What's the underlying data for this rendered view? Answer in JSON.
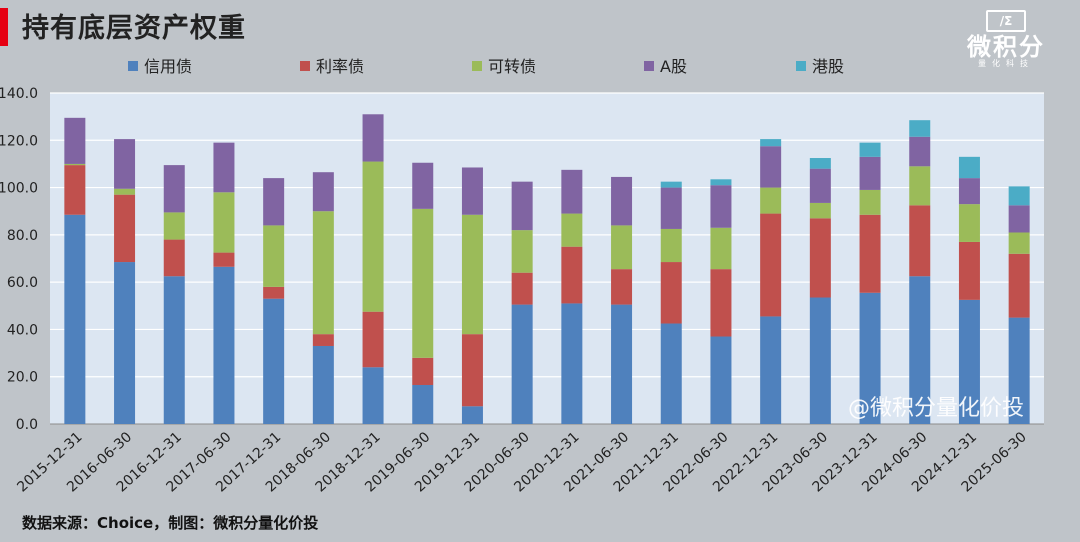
{
  "title": "持有底层资产权重",
  "logo": {
    "mark": "/Σ",
    "name": "微积分",
    "sub": "量化科技"
  },
  "source": "数据来源：Choice，制图：微积分量化价投",
  "watermark": "@微积分量化价投",
  "colors": {
    "信用债": "#4f81bd",
    "利率债": "#c0504d",
    "可转债": "#9bbb59",
    "A股": "#8064a2",
    "港股": "#4bacc6",
    "plot_bg": "#dce6f2",
    "grid": "#ffffff"
  },
  "chart_data": {
    "type": "bar",
    "stacked": true,
    "categories": [
      "2015-12-31",
      "2016-06-30",
      "2016-12-31",
      "2017-06-30",
      "2017-12-31",
      "2018-06-30",
      "2018-12-31",
      "2019-06-30",
      "2019-12-31",
      "2020-06-30",
      "2020-12-31",
      "2021-06-30",
      "2021-12-31",
      "2022-06-30",
      "2022-12-31",
      "2023-06-30",
      "2023-12-31",
      "2024-06-30",
      "2024-12-31",
      "2025-06-30"
    ],
    "series": [
      {
        "name": "信用债",
        "values": [
          88.5,
          68.5,
          62.5,
          66.5,
          53.0,
          33.0,
          24.0,
          16.5,
          7.5,
          50.5,
          51.0,
          50.5,
          42.5,
          37.0,
          45.5,
          53.5,
          55.5,
          62.5,
          52.5,
          45.0
        ]
      },
      {
        "name": "利率债",
        "values": [
          21.0,
          28.5,
          15.5,
          6.0,
          5.0,
          5.0,
          23.5,
          11.5,
          30.5,
          13.5,
          24.0,
          15.0,
          26.0,
          28.5,
          43.5,
          33.5,
          33.0,
          30.0,
          24.5,
          27.0
        ]
      },
      {
        "name": "可转债",
        "values": [
          0.5,
          2.5,
          11.5,
          25.5,
          26.0,
          52.0,
          63.5,
          63.0,
          50.5,
          18.0,
          14.0,
          18.5,
          14.0,
          17.5,
          11.0,
          6.5,
          10.5,
          16.5,
          16.0,
          9.0
        ]
      },
      {
        "name": "A股",
        "values": [
          19.5,
          21.0,
          20.0,
          21.0,
          20.0,
          16.5,
          20.0,
          19.5,
          20.0,
          20.5,
          18.5,
          20.5,
          17.5,
          18.0,
          17.5,
          14.5,
          14.0,
          12.5,
          11.0,
          11.5
        ]
      },
      {
        "name": "港股",
        "values": [
          0,
          0,
          0,
          0,
          0,
          0,
          0,
          0,
          0,
          0,
          0,
          0,
          2.5,
          2.5,
          3.0,
          4.5,
          6.0,
          7.0,
          9.0,
          8.0
        ]
      }
    ],
    "ylim": [
      0,
      140
    ],
    "yticks": [
      0,
      20,
      40,
      60,
      80,
      100,
      120,
      140
    ],
    "ytick_labels": [
      "0.0",
      "20.0",
      "40.0",
      "60.0",
      "80.0",
      "100.0",
      "120.0",
      "140.0"
    ],
    "legend_position": "top",
    "grid": true,
    "title": "",
    "xlabel": "",
    "ylabel": ""
  }
}
